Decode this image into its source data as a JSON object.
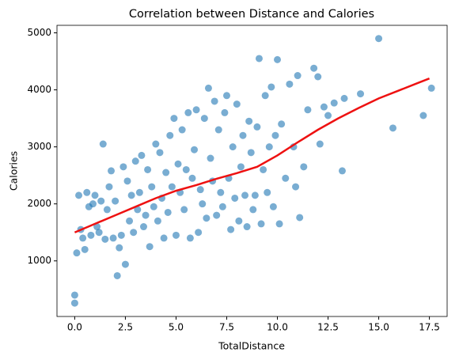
{
  "chart_data": {
    "type": "scatter",
    "title": "Correlation between Distance and Calories",
    "xlabel": "TotalDistance",
    "ylabel": "Calories",
    "xlim": [
      -0.875,
      18.375
    ],
    "ylim": [
      25,
      5132
    ],
    "xticks": [
      {
        "value": 0,
        "label": "0.0"
      },
      {
        "value": 2.5,
        "label": "2.5"
      },
      {
        "value": 5,
        "label": "5.0"
      },
      {
        "value": 7.5,
        "label": "7.5"
      },
      {
        "value": 10,
        "label": "10.0"
      },
      {
        "value": 12.5,
        "label": "12.5"
      },
      {
        "value": 15,
        "label": "15.0"
      },
      {
        "value": 17.5,
        "label": "17.5"
      }
    ],
    "yticks": [
      1000,
      2000,
      3000,
      4000,
      5000
    ],
    "series": [
      {
        "type": "scatter",
        "color": "#1f77b4",
        "x": [
          0,
          0,
          0.1,
          0.2,
          0.3,
          0.4,
          0.5,
          0.6,
          0.7,
          0.8,
          0.9,
          1,
          1.1,
          1.2,
          1.3,
          1.4,
          1.5,
          1.6,
          1.7,
          1.8,
          1.9,
          2,
          2.1,
          2.2,
          2.3,
          2.4,
          2.5,
          2.6,
          2.7,
          2.8,
          2.9,
          3,
          3.1,
          3.2,
          3.3,
          3.4,
          3.5,
          3.6,
          3.7,
          3.8,
          3.9,
          4,
          4.1,
          4.2,
          4.3,
          4.4,
          4.5,
          4.6,
          4.7,
          4.8,
          4.9,
          5,
          5.1,
          5.2,
          5.3,
          5.4,
          5.5,
          5.6,
          5.7,
          5.8,
          5.9,
          6,
          6.1,
          6.2,
          6.3,
          6.4,
          6.5,
          6.6,
          6.7,
          6.8,
          6.9,
          7,
          7.1,
          7.2,
          7.3,
          7.4,
          7.5,
          7.6,
          7.7,
          7.8,
          7.9,
          8,
          8.1,
          8.2,
          8.3,
          8.4,
          8.5,
          8.6,
          8.7,
          8.8,
          8.9,
          9,
          9.1,
          9.2,
          9.3,
          9.4,
          9.5,
          9.6,
          9.7,
          9.8,
          9.9,
          10,
          10.1,
          10.2,
          10.4,
          10.6,
          10.8,
          10.9,
          11,
          11.1,
          11.3,
          11.5,
          11.8,
          12,
          12.1,
          12.3,
          12.5,
          12.8,
          13.2,
          13.3,
          14.1,
          15,
          15.7,
          17.2,
          17.6
        ],
        "values": [
          260,
          400,
          1140,
          2150,
          1550,
          1400,
          1200,
          2200,
          1950,
          1450,
          2000,
          2150,
          1600,
          1500,
          2050,
          3050,
          1380,
          1900,
          2300,
          2580,
          1400,
          2050,
          740,
          1230,
          1450,
          2650,
          940,
          2400,
          1700,
          2150,
          1500,
          2750,
          1900,
          2200,
          2850,
          1600,
          1800,
          2600,
          1250,
          2300,
          1950,
          3050,
          1700,
          2900,
          2100,
          1400,
          2550,
          1850,
          3200,
          2300,
          3500,
          1450,
          2700,
          2200,
          3300,
          1900,
          2600,
          3600,
          1400,
          2450,
          2950,
          3650,
          1500,
          2250,
          2000,
          3500,
          1750,
          4030,
          2800,
          2400,
          3800,
          1800,
          3300,
          2200,
          1950,
          3600,
          3900,
          2450,
          1550,
          3000,
          2100,
          3750,
          1700,
          2650,
          3200,
          2150,
          1600,
          3450,
          2900,
          1900,
          2150,
          3350,
          4550,
          1650,
          2600,
          3900,
          2200,
          3000,
          4050,
          1950,
          3200,
          4530,
          1650,
          3400,
          2450,
          4100,
          3000,
          2300,
          4250,
          1760,
          2650,
          3650,
          4380,
          4230,
          3050,
          3700,
          3550,
          3770,
          2580,
          3850,
          3930,
          4900,
          3330,
          3550,
          4030
        ]
      },
      {
        "type": "line",
        "color": "#ee1111",
        "x": [
          0,
          1,
          2,
          3,
          4,
          5,
          6,
          7,
          8,
          9,
          10,
          11,
          12,
          13,
          14,
          15,
          16,
          17,
          17.5
        ],
        "values": [
          1500,
          1650,
          1800,
          1950,
          2100,
          2230,
          2330,
          2440,
          2540,
          2650,
          2850,
          3080,
          3300,
          3500,
          3680,
          3850,
          3990,
          4130,
          4200
        ]
      }
    ]
  }
}
